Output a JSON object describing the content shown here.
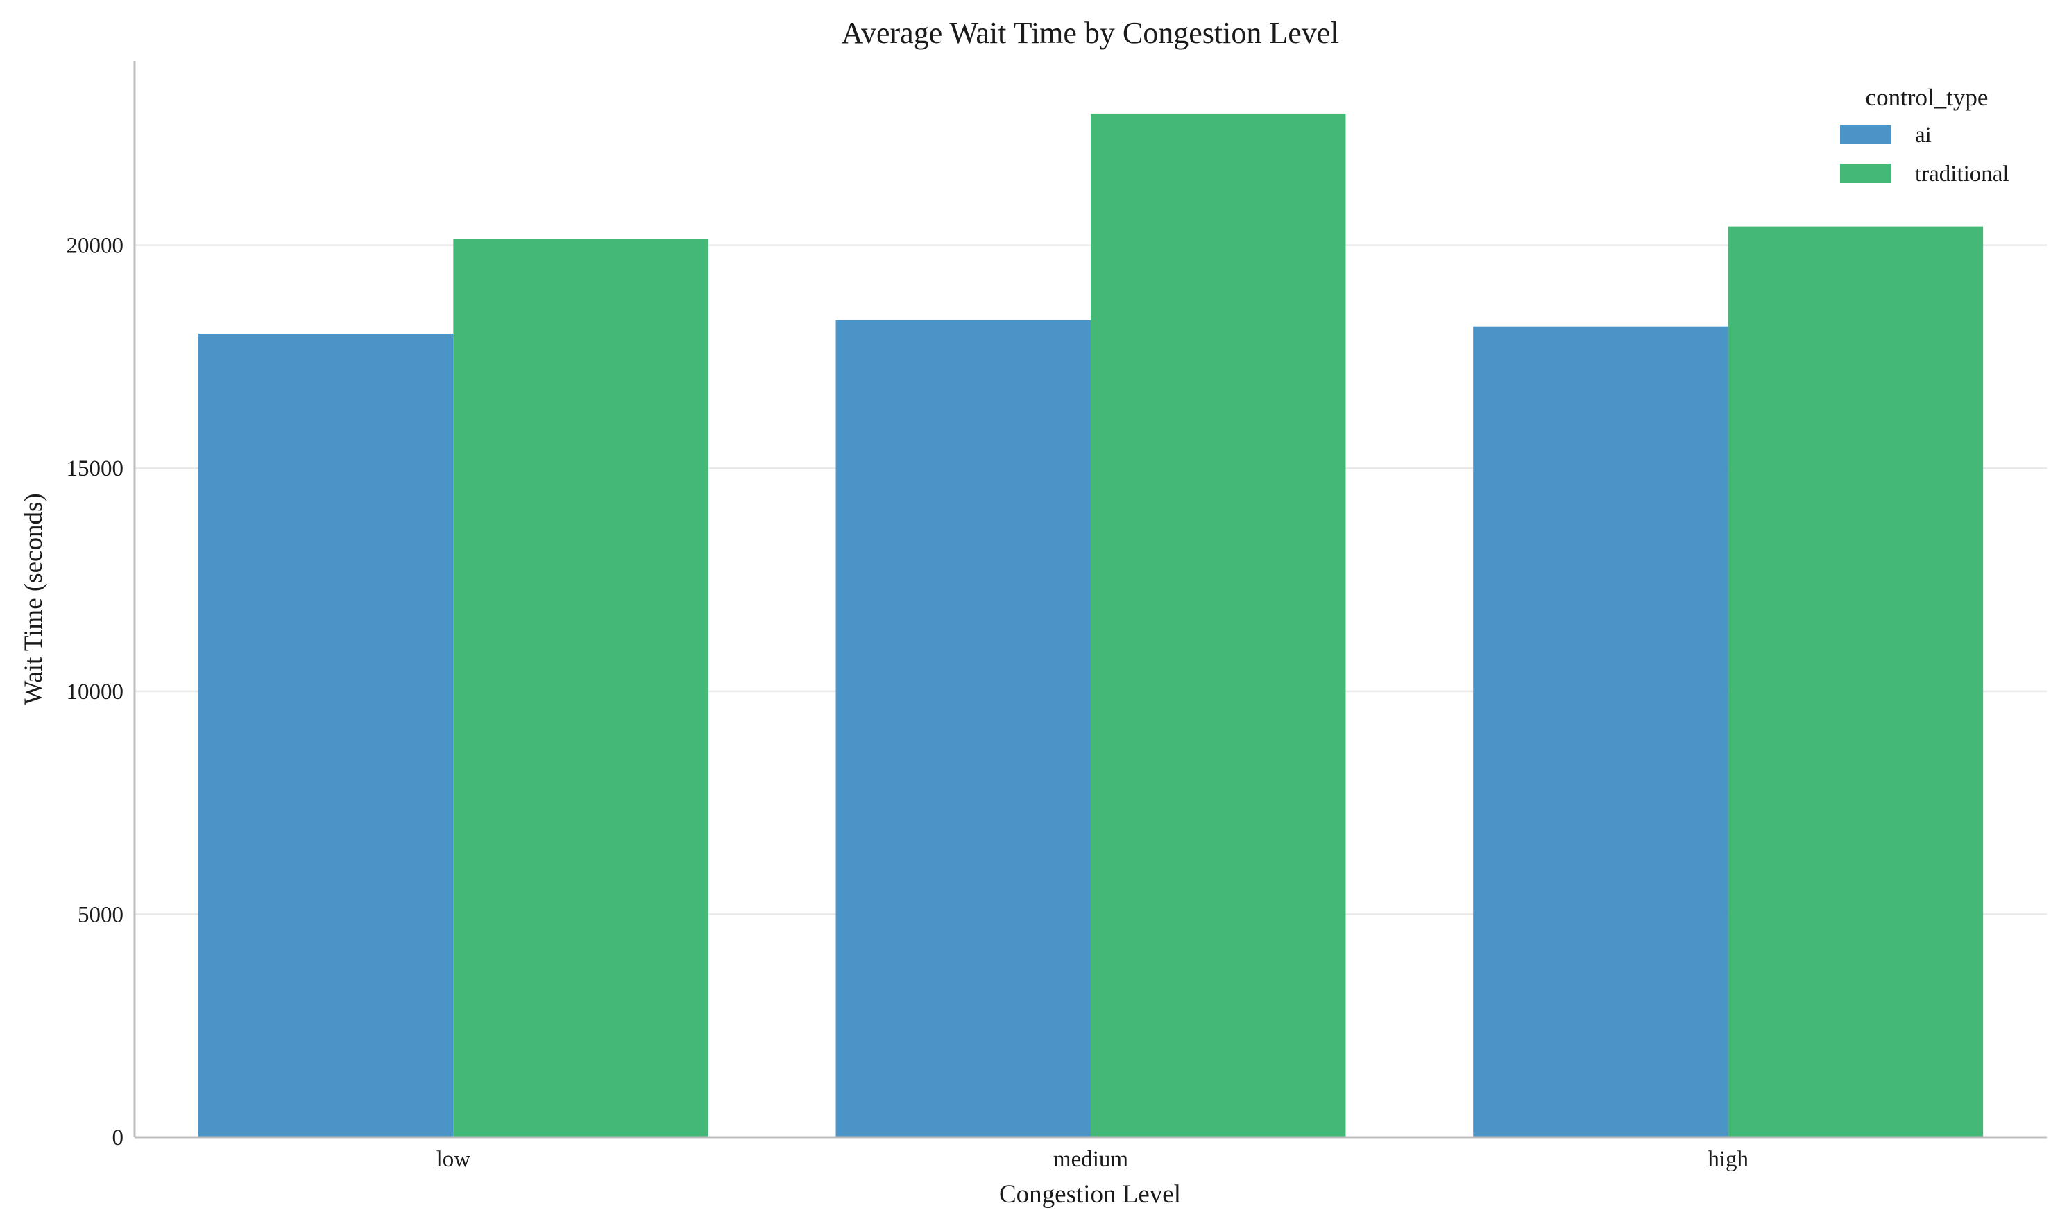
{
  "chart_data": {
    "type": "bar",
    "title": "Average Wait Time by Congestion Level",
    "xlabel": "Congestion Level",
    "ylabel": "Wait Time (seconds)",
    "categories": [
      "low",
      "medium",
      "high"
    ],
    "series": [
      {
        "name": "ai",
        "color": "#4a94c7",
        "values": [
          18020,
          18320,
          18180
        ]
      },
      {
        "name": "traditional",
        "color": "#44b876",
        "values": [
          20150,
          22950,
          20420
        ]
      }
    ],
    "ylim": [
      0,
      24130
    ],
    "yticks": [
      0,
      5000,
      10000,
      15000,
      20000
    ],
    "grid": "y",
    "legend": {
      "title": "control_type",
      "placement": "top-right"
    }
  }
}
